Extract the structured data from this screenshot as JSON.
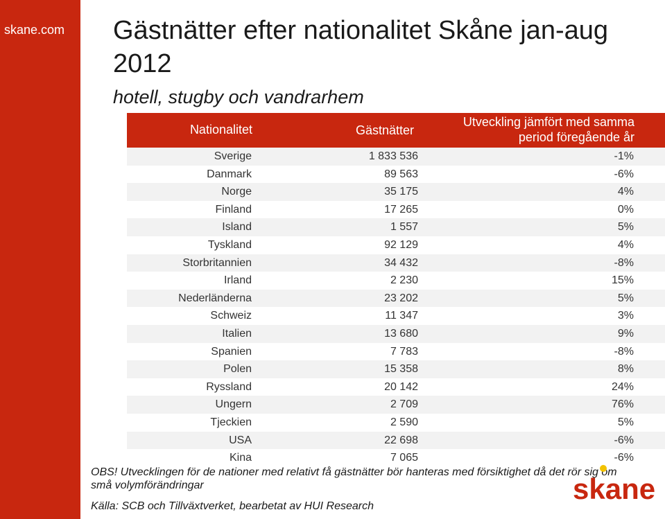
{
  "site": {
    "name": "skane.com"
  },
  "title": "Gästnätter efter nationalitet Skåne jan-aug 2012",
  "subtitle": "hotell, stugby och vandrarhem",
  "table": {
    "headers": {
      "nationality": "Nationalitet",
      "nights": "Gästnätter",
      "change_line1": "Utveckling jämfört med samma",
      "change_line2": "period föregående år"
    },
    "rows": [
      {
        "country": "Sverige",
        "nights": "1 833 536",
        "change": "-1%"
      },
      {
        "country": "Danmark",
        "nights": "89 563",
        "change": "-6%"
      },
      {
        "country": "Norge",
        "nights": "35 175",
        "change": "4%"
      },
      {
        "country": "Finland",
        "nights": "17 265",
        "change": "0%"
      },
      {
        "country": "Island",
        "nights": "1 557",
        "change": "5%"
      },
      {
        "country": "Tyskland",
        "nights": "92 129",
        "change": "4%"
      },
      {
        "country": "Storbritannien",
        "nights": "34 432",
        "change": "-8%"
      },
      {
        "country": "Irland",
        "nights": "2 230",
        "change": "15%"
      },
      {
        "country": "Nederländerna",
        "nights": "23 202",
        "change": "5%"
      },
      {
        "country": "Schweiz",
        "nights": "11 347",
        "change": "3%"
      },
      {
        "country": "Italien",
        "nights": "13 680",
        "change": "9%"
      },
      {
        "country": "Spanien",
        "nights": "7 783",
        "change": "-8%"
      },
      {
        "country": "Polen",
        "nights": "15 358",
        "change": "8%"
      },
      {
        "country": "Ryssland",
        "nights": "20 142",
        "change": "24%"
      },
      {
        "country": "Ungern",
        "nights": "2 709",
        "change": "76%"
      },
      {
        "country": "Tjeckien",
        "nights": "2 590",
        "change": "5%"
      },
      {
        "country": "USA",
        "nights": "22 698",
        "change": "-6%"
      },
      {
        "country": "Kina",
        "nights": "7 065",
        "change": "-6%"
      }
    ]
  },
  "note": "OBS! Utvecklingen för de nationer med relativt få gästnätter bör hanteras med försiktighet då det rör sig om små volymförändringar",
  "source": "Källa: SCB och Tillväxtverket, bearbetat av HUI Research",
  "logo": {
    "text": "skane",
    "colors": {
      "text": "#c8270f",
      "dot": "#f2c200"
    }
  },
  "colors": {
    "accent": "#c8270f",
    "row_alt": "#f2f2f2"
  }
}
